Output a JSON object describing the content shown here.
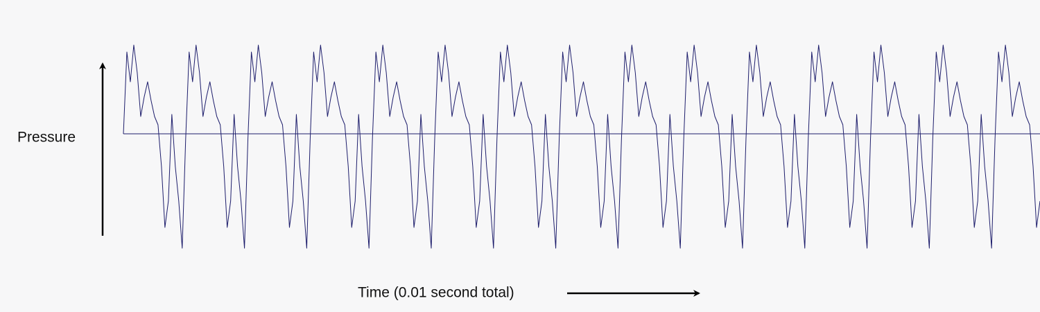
{
  "chart_data": {
    "type": "line",
    "y_label": "Pressure",
    "x_label": "Time (0.01 second total)",
    "color": "#1c1c6b",
    "ylim": [
      -18.7,
      15.3
    ],
    "values": [
      0,
      11.8,
      7.5,
      12.8,
      8.8,
      2.5,
      5.3,
      7.5,
      4.8,
      2.5,
      1.3,
      -4.7,
      -13.5,
      -9.7,
      2.8,
      -4.7,
      -9.7,
      -16.5,
      -0.7,
      11.8,
      7.5,
      12.8,
      8.8,
      2.5,
      5.3,
      7.5,
      4.8,
      2.5,
      1.3,
      -4.7,
      -13.5,
      -9.7,
      2.8,
      -4.7,
      -9.7,
      -16.5,
      -0.7,
      11.8,
      7.5,
      12.8,
      8.8,
      2.5,
      5.3,
      7.5,
      4.8,
      2.5,
      1.3,
      -4.7,
      -13.5,
      -9.7,
      2.8,
      -4.7,
      -9.7,
      -16.5,
      -0.7,
      11.8,
      7.5,
      12.8,
      8.8,
      2.5,
      5.3,
      7.5,
      4.8,
      2.5,
      1.3,
      -4.7,
      -13.5,
      -9.7,
      2.8,
      -4.7,
      -9.7,
      -16.5,
      -0.7,
      11.8,
      7.5,
      12.8,
      8.8,
      2.5,
      5.3,
      7.5,
      4.8,
      2.5,
      1.3,
      -4.7,
      -13.5,
      -9.7,
      2.8,
      -4.7,
      -9.7,
      -16.5,
      -0.7,
      11.8,
      7.5,
      12.8,
      8.8,
      2.5,
      5.3,
      7.5,
      4.8,
      2.5,
      1.3,
      -4.7,
      -13.5,
      -9.7,
      2.8,
      -4.7,
      -9.7,
      -16.5,
      -0.7,
      11.8,
      7.5,
      12.8,
      8.8,
      2.5,
      5.3,
      7.5,
      4.8,
      2.5,
      1.3,
      -4.7,
      -13.5,
      -9.7,
      2.8,
      -4.7,
      -9.7,
      -16.5,
      -0.7,
      11.8,
      7.5,
      12.8,
      8.8,
      2.5,
      5.3,
      7.5,
      4.8,
      2.5,
      1.3,
      -4.7,
      -13.5,
      -9.7,
      2.8,
      -4.7,
      -9.7,
      -16.5,
      -0.7,
      11.8,
      7.5,
      12.8,
      8.8,
      2.5,
      5.3,
      7.5,
      4.8,
      2.5,
      1.3,
      -4.7,
      -13.5,
      -9.7,
      2.8,
      -4.7,
      -9.7,
      -16.5,
      -0.7,
      11.8,
      7.5,
      12.8,
      8.8,
      2.5,
      5.3,
      7.5,
      4.8,
      2.5,
      1.3,
      -4.7,
      -13.5,
      -9.7,
      2.8,
      -4.7,
      -9.7,
      -16.5,
      -0.7,
      11.8,
      7.5,
      12.8,
      8.8,
      2.5,
      5.3,
      7.5,
      4.8,
      2.5,
      1.3,
      -4.7,
      -13.5,
      -9.7,
      2.8,
      -4.7,
      -9.7,
      -16.5,
      -0.7,
      11.8,
      7.5,
      12.8,
      8.8,
      2.5,
      5.3,
      7.5,
      4.8,
      2.5,
      1.3,
      -4.7,
      -13.5,
      -9.7,
      2.8,
      -4.7,
      -9.7,
      -16.5,
      -0.7,
      11.8,
      7.5,
      12.8,
      8.8,
      2.5,
      5.3,
      7.5,
      4.8,
      2.5,
      1.3,
      -4.7,
      -13.5,
      -9.7,
      2.8,
      -4.7,
      -9.7,
      -16.5,
      -0.7,
      11.8,
      7.5,
      12.8,
      8.8,
      2.5,
      5.3,
      7.5,
      4.8,
      2.5,
      1.3,
      -4.7,
      -13.5,
      -9.7,
      2.8,
      -4.7,
      -9.7,
      -16.5,
      -0.7,
      11.8,
      7.5,
      12.8,
      8.8,
      2.5,
      5.3,
      7.5,
      4.8,
      2.5,
      1.3,
      -4.7,
      -13.5,
      -9.7
    ]
  }
}
